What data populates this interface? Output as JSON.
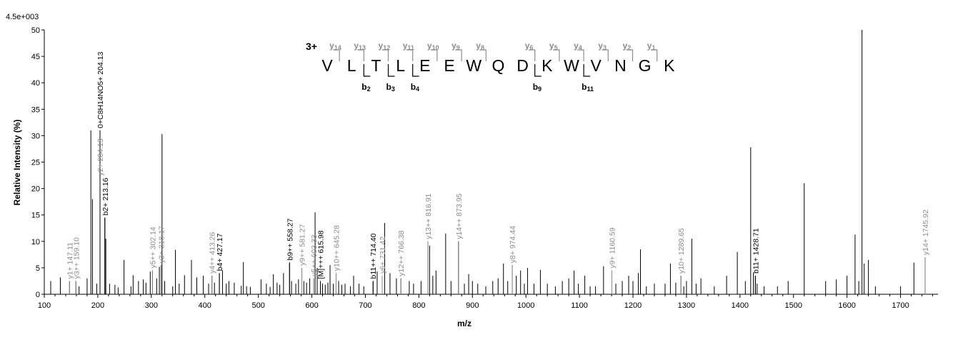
{
  "chart_data": {
    "type": "bar",
    "ymax_label": "4.5e+003",
    "xlabel": "m/z",
    "ylabel": "Relative Intensity (%)",
    "xlim": [
      100,
      1770
    ],
    "ylim": [
      0,
      50
    ],
    "x_ticks": [
      100,
      200,
      300,
      400,
      500,
      600,
      700,
      800,
      900,
      1000,
      1100,
      1200,
      1300,
      1400,
      1500,
      1600,
      1700
    ],
    "y_ticks": [
      0,
      5,
      10,
      15,
      20,
      25,
      30,
      35,
      40,
      45,
      50
    ],
    "precursor_charge": "3+",
    "sequence": [
      "V",
      "L",
      "T",
      "L",
      "E",
      "E",
      "W",
      "Q",
      "D",
      "K",
      "W",
      "V",
      "N",
      "G",
      "K"
    ],
    "y_ions": [
      {
        "label": "y",
        "num": "14",
        "after": 1
      },
      {
        "label": "y",
        "num": "13",
        "after": 2
      },
      {
        "label": "y",
        "num": "12",
        "after": 3
      },
      {
        "label": "y",
        "num": "11",
        "after": 4
      },
      {
        "label": "y",
        "num": "10",
        "after": 5
      },
      {
        "label": "y",
        "num": "9",
        "after": 6
      },
      {
        "label": "y",
        "num": "8",
        "after": 7
      },
      {
        "label": "y",
        "num": "6",
        "after": 9
      },
      {
        "label": "y",
        "num": "5",
        "after": 10
      },
      {
        "label": "y",
        "num": "4",
        "after": 11
      },
      {
        "label": "y",
        "num": "3",
        "after": 12
      },
      {
        "label": "y",
        "num": "2",
        "after": 13
      },
      {
        "label": "y",
        "num": "1",
        "after": 14
      }
    ],
    "b_ions": [
      {
        "label": "b",
        "num": "2",
        "after": 2
      },
      {
        "label": "b",
        "num": "3",
        "after": 3
      },
      {
        "label": "b",
        "num": "4",
        "after": 4
      },
      {
        "label": "b",
        "num": "9",
        "after": 9
      },
      {
        "label": "b",
        "num": "11",
        "after": 11
      }
    ],
    "labeled_peaks": [
      {
        "mz": 147.11,
        "intensity": 2.5,
        "label": "y1+ 147.11",
        "type": "y"
      },
      {
        "mz": 159.1,
        "intensity": 2.5,
        "label": "y3++ 159.10",
        "type": "y"
      },
      {
        "mz": 204.13,
        "intensity": 22,
        "label": "y2+ 204.13",
        "type": "y"
      },
      {
        "mz": 204.13,
        "intensity": 31,
        "label": "0+C8H14NO5+ 204.13",
        "type": "b"
      },
      {
        "mz": 213.16,
        "intensity": 14.5,
        "label": "b2+ 213.16",
        "type": "b"
      },
      {
        "mz": 302.14,
        "intensity": 4.5,
        "label": "y5++ 302.14",
        "type": "y"
      },
      {
        "mz": 318.17,
        "intensity": 5.5,
        "label": "y3+ 318.17",
        "type": "y"
      },
      {
        "mz": 413.26,
        "intensity": 3.5,
        "label": "y4++ 413.26",
        "type": "y"
      },
      {
        "mz": 427.17,
        "intensity": 4,
        "label": "b4+ 427.17",
        "type": "b"
      },
      {
        "mz": 558.27,
        "intensity": 6,
        "label": "b9++ 558.27",
        "type": "b"
      },
      {
        "mz": 581.27,
        "intensity": 5,
        "label": "y9++ 581.27",
        "type": "y"
      },
      {
        "mz": 603.33,
        "intensity": 3,
        "label": "y5++ 603.33",
        "type": "y"
      },
      {
        "mz": 615.98,
        "intensity": 2.5,
        "label": "[M]+++ 615.98",
        "type": "b"
      },
      {
        "mz": 645.28,
        "intensity": 4,
        "label": "y10++ 645.28",
        "type": "y"
      },
      {
        "mz": 714.4,
        "intensity": 2.5,
        "label": "b11++ 714.40",
        "type": "b"
      },
      {
        "mz": 731.42,
        "intensity": 3.5,
        "label": "y6+ 731.42",
        "type": "y"
      },
      {
        "mz": 766.38,
        "intensity": 3,
        "label": "y12++ 766.38",
        "type": "y"
      },
      {
        "mz": 816.91,
        "intensity": 10,
        "label": "y13++ 816.91",
        "type": "y"
      },
      {
        "mz": 873.95,
        "intensity": 10,
        "label": "y14++ 873.95",
        "type": "y"
      },
      {
        "mz": 974.44,
        "intensity": 5.5,
        "label": "y8+ 974.44",
        "type": "y"
      },
      {
        "mz": 1160.59,
        "intensity": 4.5,
        "label": "y9+ 1160.59",
        "type": "y"
      },
      {
        "mz": 1289.65,
        "intensity": 3.5,
        "label": "y10+ 1289.65",
        "type": "y"
      },
      {
        "mz": 1428.71,
        "intensity": 3.5,
        "label": "b11+ 1428.71",
        "type": "b"
      },
      {
        "mz": 1745.92,
        "intensity": 7,
        "label": "y14+ 1745.92",
        "type": "y"
      }
    ],
    "peaks": [
      [
        112,
        2.5
      ],
      [
        130,
        3.2
      ],
      [
        147.11,
        2.5
      ],
      [
        159.1,
        2.5
      ],
      [
        165,
        1.5
      ],
      [
        180,
        3
      ],
      [
        187,
        31
      ],
      [
        190,
        18
      ],
      [
        198,
        2
      ],
      [
        204.13,
        22
      ],
      [
        213.16,
        14.5
      ],
      [
        215,
        10.5
      ],
      [
        222,
        2
      ],
      [
        232,
        1.8
      ],
      [
        238,
        1.3
      ],
      [
        249,
        6.5
      ],
      [
        262,
        1.5
      ],
      [
        266,
        3.6
      ],
      [
        276,
        2.5
      ],
      [
        285,
        2.8
      ],
      [
        290,
        2.2
      ],
      [
        298,
        4.3
      ],
      [
        302.14,
        4.5
      ],
      [
        310,
        3
      ],
      [
        315,
        5.2
      ],
      [
        318.17,
        5.5
      ],
      [
        320,
        30.3
      ],
      [
        325,
        2.5
      ],
      [
        340,
        1.5
      ],
      [
        345,
        8.4
      ],
      [
        352,
        2
      ],
      [
        362,
        3.6
      ],
      [
        375,
        6.5
      ],
      [
        385,
        3.2
      ],
      [
        397,
        3.5
      ],
      [
        407,
        2
      ],
      [
        413.26,
        3.5
      ],
      [
        418,
        2.2
      ],
      [
        427.17,
        4
      ],
      [
        433,
        4.5
      ],
      [
        440,
        2
      ],
      [
        445,
        2.5
      ],
      [
        455,
        2.2
      ],
      [
        468,
        1.6
      ],
      [
        472,
        6.1
      ],
      [
        478,
        1.5
      ],
      [
        485,
        1.4
      ],
      [
        505,
        2.8
      ],
      [
        515,
        2
      ],
      [
        522,
        1.4
      ],
      [
        528,
        3.8
      ],
      [
        535,
        2.2
      ],
      [
        540,
        1.8
      ],
      [
        547,
        4
      ],
      [
        558.27,
        6
      ],
      [
        562,
        2.5
      ],
      [
        570,
        2
      ],
      [
        575,
        2.8
      ],
      [
        581.27,
        5
      ],
      [
        585,
        2.5
      ],
      [
        590,
        2.2
      ],
      [
        596,
        3
      ],
      [
        603.33,
        3
      ],
      [
        606,
        15.5
      ],
      [
        610,
        5
      ],
      [
        615.98,
        2.5
      ],
      [
        620,
        2
      ],
      [
        625,
        1.8
      ],
      [
        630,
        2.2
      ],
      [
        634,
        5.5
      ],
      [
        640,
        2
      ],
      [
        645.28,
        4
      ],
      [
        650,
        2.5
      ],
      [
        656,
        1.8
      ],
      [
        662,
        2
      ],
      [
        672,
        1.5
      ],
      [
        678,
        3.5
      ],
      [
        688,
        2
      ],
      [
        697,
        1.5
      ],
      [
        714.4,
        2.5
      ],
      [
        722,
        4.3
      ],
      [
        731.42,
        3.5
      ],
      [
        736,
        13.5
      ],
      [
        746,
        4
      ],
      [
        758,
        3
      ],
      [
        766.38,
        3
      ],
      [
        782,
        2.5
      ],
      [
        790,
        2
      ],
      [
        804,
        2.5
      ],
      [
        816.91,
        10
      ],
      [
        820,
        9.2
      ],
      [
        826,
        3.5
      ],
      [
        832,
        4.5
      ],
      [
        850,
        11.5
      ],
      [
        860,
        2.5
      ],
      [
        873.95,
        10
      ],
      [
        885,
        2
      ],
      [
        893,
        3.8
      ],
      [
        900,
        2.5
      ],
      [
        910,
        2
      ],
      [
        925,
        1.5
      ],
      [
        938,
        2.5
      ],
      [
        948,
        3
      ],
      [
        958,
        5.8
      ],
      [
        966,
        2.5
      ],
      [
        974.44,
        5.5
      ],
      [
        982,
        3.5
      ],
      [
        990,
        4.5
      ],
      [
        997,
        2
      ],
      [
        1003,
        5
      ],
      [
        1015,
        2
      ],
      [
        1027,
        4.6
      ],
      [
        1040,
        2
      ],
      [
        1055,
        1.5
      ],
      [
        1068,
        2.5
      ],
      [
        1080,
        3
      ],
      [
        1090,
        4.5
      ],
      [
        1098,
        2
      ],
      [
        1110,
        3.5
      ],
      [
        1120,
        1.5
      ],
      [
        1130,
        1.5
      ],
      [
        1145,
        5.3
      ],
      [
        1160.59,
        4.5
      ],
      [
        1168,
        2
      ],
      [
        1180,
        2.5
      ],
      [
        1192,
        3.5
      ],
      [
        1200,
        2.5
      ],
      [
        1210,
        4
      ],
      [
        1214,
        8.5
      ],
      [
        1225,
        1.5
      ],
      [
        1240,
        2
      ],
      [
        1260,
        2
      ],
      [
        1270,
        5.8
      ],
      [
        1280,
        2.2
      ],
      [
        1289.65,
        3.5
      ],
      [
        1295,
        1.5
      ],
      [
        1300,
        2.5
      ],
      [
        1310,
        10.5
      ],
      [
        1318,
        2
      ],
      [
        1327,
        3
      ],
      [
        1352,
        1.5
      ],
      [
        1375,
        3.5
      ],
      [
        1395,
        8
      ],
      [
        1410,
        2.5
      ],
      [
        1420,
        27.8
      ],
      [
        1425,
        4
      ],
      [
        1428.71,
        3.5
      ],
      [
        1432,
        2
      ],
      [
        1445,
        1.5
      ],
      [
        1470,
        1.5
      ],
      [
        1490,
        2.5
      ],
      [
        1520,
        21
      ],
      [
        1560,
        2.5
      ],
      [
        1580,
        2.8
      ],
      [
        1600,
        3.5
      ],
      [
        1615,
        11.3
      ],
      [
        1622,
        2.5
      ],
      [
        1628,
        50
      ],
      [
        1632,
        5.8
      ],
      [
        1640,
        6.5
      ],
      [
        1653,
        1.5
      ],
      [
        1700,
        1.5
      ],
      [
        1725,
        6
      ],
      [
        1745.92,
        7
      ]
    ]
  }
}
